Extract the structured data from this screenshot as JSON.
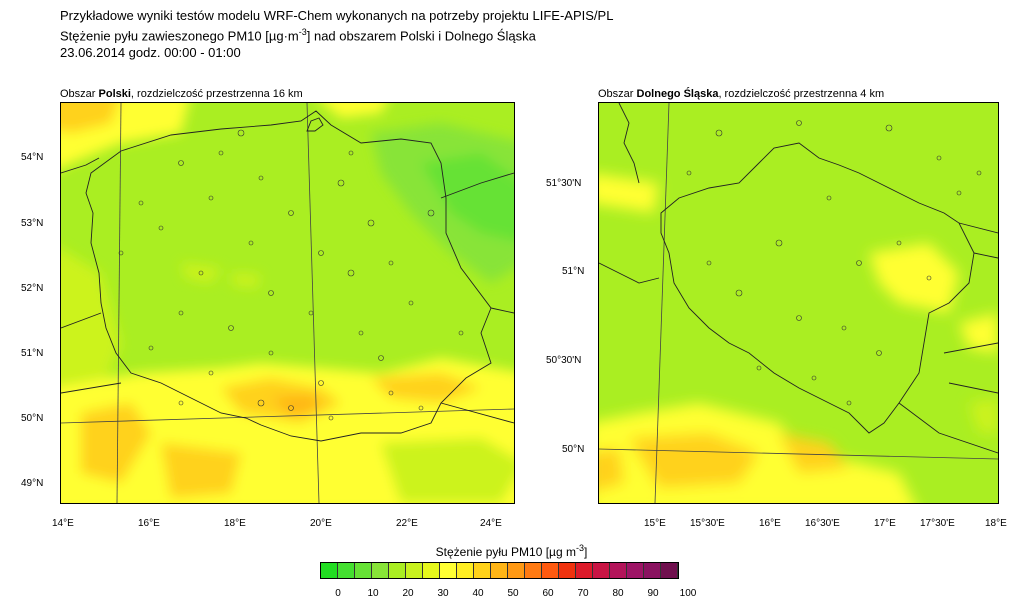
{
  "header": {
    "line1": "Przykładowe wyniki testów modelu WRF-Chem wykonanych na potrzeby projektu LIFE-APIS/PL",
    "line2_prefix": "Stężenie pyłu zawieszonego PM10 [µg·m",
    "line2_sup": "-3",
    "line2_suffix": "] nad obszarem Polski i Dolnego Śląska",
    "line3": "23.06.2014 godz. 00:00 - 01:00"
  },
  "left_map": {
    "subtitle_prefix": "Obszar ",
    "subtitle_bold": "Polski",
    "subtitle_suffix": ", rozdzielczość przestrzenna 16 km",
    "lat_ticks": [
      "54°N",
      "53°N",
      "52°N",
      "51°N",
      "50°N",
      "49°N"
    ],
    "lon_ticks": [
      "14°E",
      "16°E",
      "18°E",
      "20°E",
      "22°E",
      "24°E"
    ]
  },
  "right_map": {
    "subtitle_prefix": "Obszar ",
    "subtitle_bold": "Dolnego Śląska",
    "subtitle_suffix": ", rozdzielczość przestrzenna 4 km",
    "lat_ticks": [
      "51°30'N",
      "51°N",
      "50°30'N",
      "50°N"
    ],
    "lon_ticks": [
      "15°E",
      "15°30'E",
      "16°E",
      "16°30'E",
      "17°E",
      "17°30'E",
      "18°E"
    ]
  },
  "colorbar": {
    "title_prefix": "Stężenie pyłu PM10 [µg m",
    "title_sup": "-3",
    "title_suffix": "]",
    "labels": [
      "0",
      "10",
      "20",
      "30",
      "40",
      "50",
      "60",
      "70",
      "80",
      "90",
      "100"
    ],
    "colors": [
      "#22dd22",
      "#44e030",
      "#66e235",
      "#88e438",
      "#aaee22",
      "#c8f21e",
      "#e6f81c",
      "#ffff33",
      "#ffee22",
      "#ffd21a",
      "#ffb516",
      "#ff9914",
      "#ff7a12",
      "#ff5a10",
      "#f0320e",
      "#dd1a2a",
      "#c81544",
      "#b3145a",
      "#9e1466",
      "#8a1260",
      "#70104e"
    ]
  }
}
